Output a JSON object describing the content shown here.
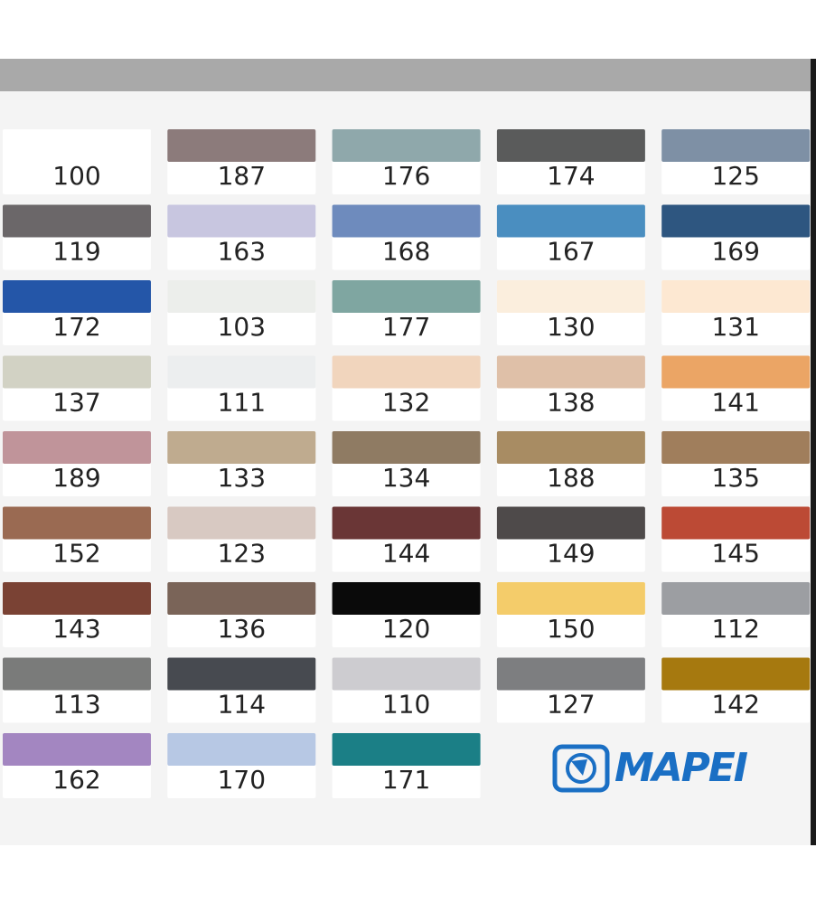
{
  "swatches": [
    {
      "label": "100",
      "color": "#ffffff"
    },
    {
      "label": "187",
      "color": "#8c7b7b"
    },
    {
      "label": "176",
      "color": "#8fa8ab"
    },
    {
      "label": "174",
      "color": "#5a5b5b"
    },
    {
      "label": "125",
      "color": "#7e90a5"
    },
    {
      "label": "119",
      "color": "#6b6769"
    },
    {
      "label": "163",
      "color": "#c8c6e0"
    },
    {
      "label": "168",
      "color": "#6e8bbd"
    },
    {
      "label": "167",
      "color": "#4a8ec0"
    },
    {
      "label": "169",
      "color": "#2e5680"
    },
    {
      "label": "172",
      "color": "#2456a8"
    },
    {
      "label": "103",
      "color": "#eceeeb"
    },
    {
      "label": "177",
      "color": "#7fa6a1"
    },
    {
      "label": "130",
      "color": "#fbeedd"
    },
    {
      "label": "131",
      "color": "#fde8d2"
    },
    {
      "label": "137",
      "color": "#d2d2c4"
    },
    {
      "label": "111",
      "color": "#eceeef"
    },
    {
      "label": "132",
      "color": "#f1d5bd"
    },
    {
      "label": "138",
      "color": "#dfc0a8"
    },
    {
      "label": "141",
      "color": "#eba565"
    },
    {
      "label": "189",
      "color": "#c0949a"
    },
    {
      "label": "133",
      "color": "#bfab8f"
    },
    {
      "label": "134",
      "color": "#8f7b63"
    },
    {
      "label": "188",
      "color": "#a88c63"
    },
    {
      "label": "135",
      "color": "#a07e5c"
    },
    {
      "label": "152",
      "color": "#9a6a52"
    },
    {
      "label": "123",
      "color": "#d8c9c2"
    },
    {
      "label": "144",
      "color": "#6a3636"
    },
    {
      "label": "149",
      "color": "#4e4a4a"
    },
    {
      "label": "145",
      "color": "#bc4a35"
    },
    {
      "label": "143",
      "color": "#7a4234"
    },
    {
      "label": "136",
      "color": "#7a6458"
    },
    {
      "label": "120",
      "color": "#0a0a0a"
    },
    {
      "label": "150",
      "color": "#f4cc6a"
    },
    {
      "label": "112",
      "color": "#9c9ea2"
    },
    {
      "label": "113",
      "color": "#7a7b7a"
    },
    {
      "label": "114",
      "color": "#474a50"
    },
    {
      "label": "110",
      "color": "#cdccd0"
    },
    {
      "label": "127",
      "color": "#7d7e80"
    },
    {
      "label": "142",
      "color": "#a6790f"
    },
    {
      "label": "162",
      "color": "#a386c1"
    },
    {
      "label": "170",
      "color": "#b7c8e4"
    },
    {
      "label": "171",
      "color": "#1b7f86"
    }
  ],
  "logo": "MAPEI"
}
